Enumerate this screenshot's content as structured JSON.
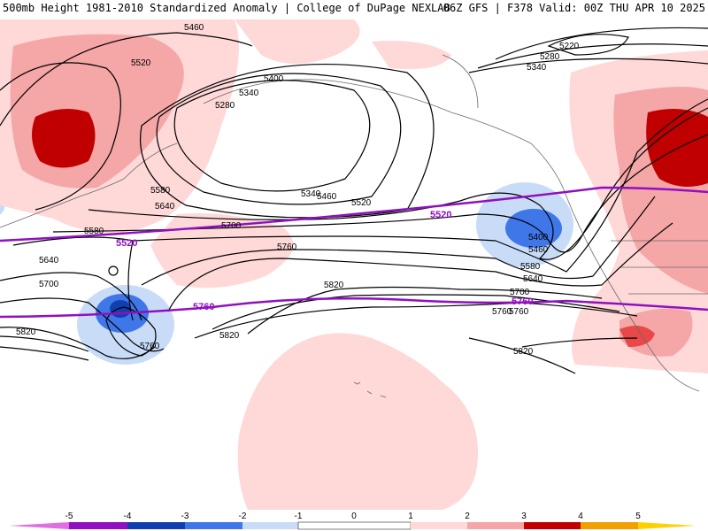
{
  "header": {
    "left": "500mb Height 1981-2010 Standardized Anomaly | College of DuPage NEXLAB",
    "right": "06Z GFS | F378 Valid: 00Z THU APR 10 2025"
  },
  "colors": {
    "neg5": "#e070e0",
    "neg4": "#9010c0",
    "neg3": "#1040b0",
    "neg2": "#3f76e8",
    "neg1": "#c8dcf8",
    "zero": "#ffffff",
    "pos1": "#ffd8d8",
    "pos2": "#f5a6a6",
    "pos3": "#e84848",
    "pos4": "#c00000",
    "pos5": "#f0a000",
    "pos6": "#ffd000",
    "contour": "#000000",
    "climo": "#9010c0",
    "coast": "#6a6a6a"
  },
  "colorbar": {
    "ticks": [
      "-5",
      "-4",
      "-3",
      "-2",
      "-1",
      "0",
      "1",
      "2",
      "3",
      "4",
      "5"
    ]
  },
  "contour_labels": [
    "5460",
    "5520",
    "5220",
    "5280",
    "5340",
    "5400",
    "5280",
    "5340",
    "5460",
    "5520",
    "5580",
    "5640",
    "5700",
    "5760",
    "5580",
    "5640",
    "5700",
    "5760",
    "5820",
    "5820",
    "5820",
    "5760",
    "5400",
    "5460",
    "5580",
    "5640",
    "5700",
    "5760",
    "5820",
    "5340"
  ],
  "climo_labels": [
    "5520",
    "5520",
    "5760",
    "5760"
  ]
}
